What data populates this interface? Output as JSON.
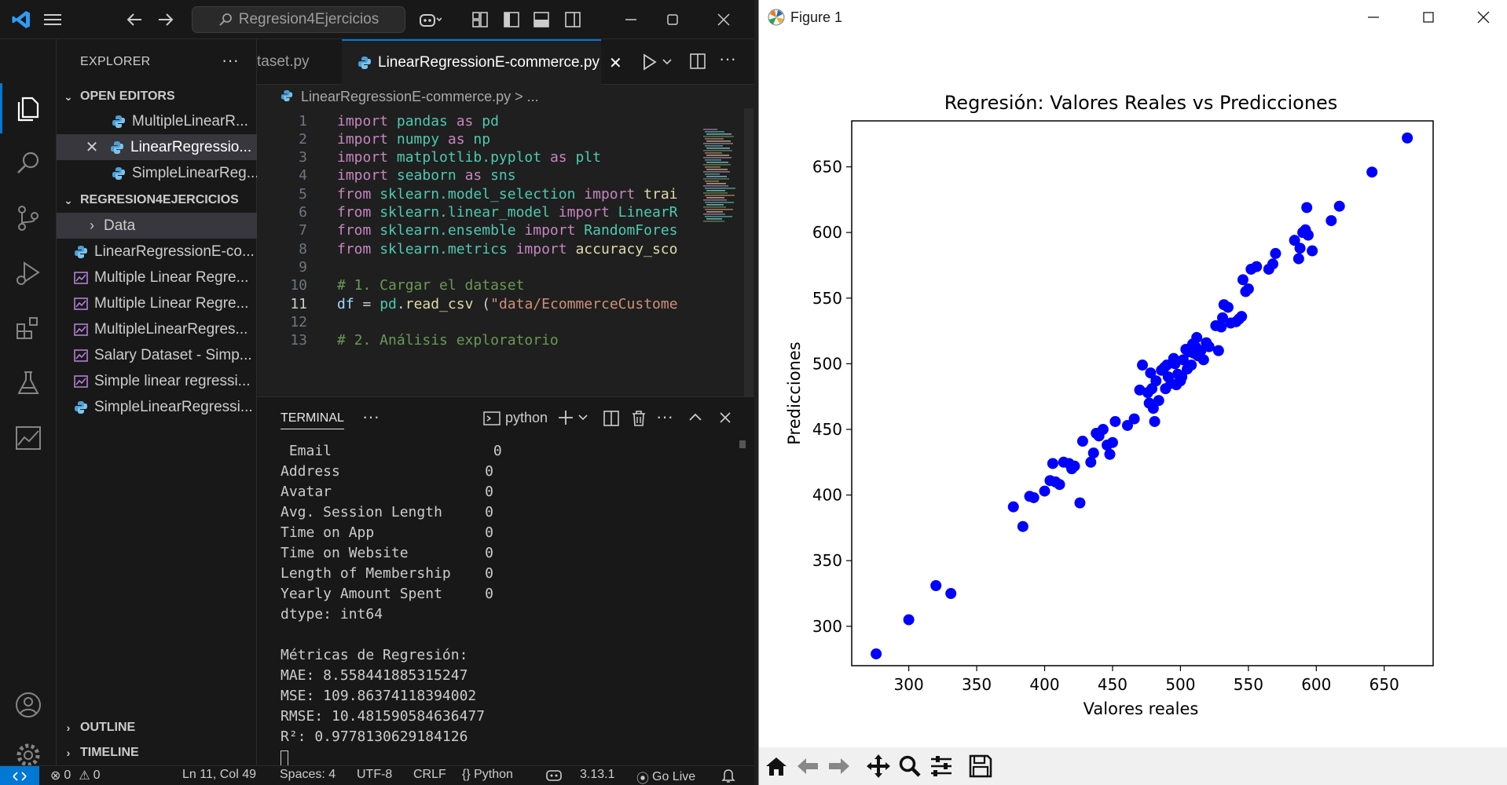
{
  "vscode": {
    "search_box": "Regresion4Ejercicios",
    "explorer_title": "EXPLORER",
    "open_editors_label": "OPEN EDITORS",
    "open_editors": [
      "MultipleLinearR...",
      "LinearRegressio...",
      "SimpleLinearReg..."
    ],
    "project_label": "REGRESION4EJERCICIOS",
    "files": [
      {
        "name": "Data",
        "kind": "folder"
      },
      {
        "name": "LinearRegressionE-co...",
        "kind": "python"
      },
      {
        "name": "Multiple Linear Regre...",
        "kind": "dataset"
      },
      {
        "name": "Multiple Linear Regre...",
        "kind": "dataset"
      },
      {
        "name": "MultipleLinearRegres...",
        "kind": "dataset"
      },
      {
        "name": "Salary Dataset - Simp...",
        "kind": "dataset"
      },
      {
        "name": "Simple linear regressi...",
        "kind": "dataset"
      },
      {
        "name": "SimpleLinearRegressi...",
        "kind": "python"
      }
    ],
    "outline_label": "OUTLINE",
    "timeline_label": "TIMELINE",
    "tabs": [
      {
        "label": "taset.py",
        "active": false
      },
      {
        "label": "LinearRegressionE-commerce.py",
        "active": true
      }
    ],
    "breadcrumb": "LinearRegressionE-commerce.py > ...",
    "current_line": 11,
    "code_lines": [
      {
        "n": "1",
        "parts": [
          [
            "kw",
            "import "
          ],
          [
            "mod",
            "pandas "
          ],
          [
            "kw",
            "as "
          ],
          [
            "mod",
            "pd"
          ]
        ]
      },
      {
        "n": "2",
        "parts": [
          [
            "kw",
            "import "
          ],
          [
            "mod",
            "numpy "
          ],
          [
            "kw",
            "as "
          ],
          [
            "mod",
            "np"
          ]
        ]
      },
      {
        "n": "3",
        "parts": [
          [
            "kw",
            "import "
          ],
          [
            "mod",
            "matplotlib.pyplot "
          ],
          [
            "kw",
            "as "
          ],
          [
            "mod",
            "plt"
          ]
        ]
      },
      {
        "n": "4",
        "parts": [
          [
            "kw",
            "import "
          ],
          [
            "mod",
            "seaborn "
          ],
          [
            "kw",
            "as "
          ],
          [
            "mod",
            "sns"
          ]
        ]
      },
      {
        "n": "5",
        "parts": [
          [
            "kw",
            "from "
          ],
          [
            "mod",
            "sklearn.model_selection "
          ],
          [
            "kw",
            "import "
          ],
          [
            "fn",
            "trai"
          ]
        ]
      },
      {
        "n": "6",
        "parts": [
          [
            "kw",
            "from "
          ],
          [
            "mod",
            "sklearn.linear_model "
          ],
          [
            "kw",
            "import "
          ],
          [
            "mod",
            "LinearR"
          ]
        ]
      },
      {
        "n": "7",
        "parts": [
          [
            "kw",
            "from "
          ],
          [
            "mod",
            "sklearn.ensemble "
          ],
          [
            "kw",
            "import "
          ],
          [
            "mod",
            "RandomFores"
          ]
        ]
      },
      {
        "n": "8",
        "parts": [
          [
            "kw",
            "from "
          ],
          [
            "mod",
            "sklearn.metrics "
          ],
          [
            "kw",
            "import "
          ],
          [
            "fn",
            "accuracy_sco"
          ]
        ]
      },
      {
        "n": "9",
        "parts": []
      },
      {
        "n": "10",
        "parts": [
          [
            "cmt",
            "# 1. Cargar el dataset"
          ]
        ]
      },
      {
        "n": "11",
        "parts": [
          [
            "id",
            "df "
          ],
          [
            "pl",
            "= "
          ],
          [
            "mod",
            "pd"
          ],
          [
            "pl",
            "."
          ],
          [
            "fn",
            "read_csv "
          ],
          [
            "pl",
            "("
          ],
          [
            "str",
            "\"data/EcommerceCustome"
          ]
        ]
      },
      {
        "n": "12",
        "parts": []
      },
      {
        "n": "13",
        "parts": [
          [
            "cmt",
            "# 2. Análisis exploratorio"
          ]
        ]
      }
    ],
    "terminal_tab": "TERMINAL",
    "terminal_shell": "python",
    "terminal_lines": [
      " Email                   0",
      "Address                 0",
      "Avatar                  0",
      "Avg. Session Length     0",
      "Time on App             0",
      "Time on Website         0",
      "Length of Membership    0",
      "Yearly Amount Spent     0",
      "dtype: int64",
      "",
      "Métricas de Regresión:",
      "MAE: 8.558441885315247",
      "MSE: 109.86374118394002",
      "RMSE: 10.481590584636477",
      "R²: 0.9778130629184126"
    ],
    "status": {
      "errors": "0",
      "warnings": "0",
      "position": "Ln 11, Col 49",
      "spaces": "Spaces: 4",
      "encoding": "UTF-8",
      "eol": "CRLF",
      "language": "{} Python",
      "python_version": "3.13.1",
      "go_live": "Go Live"
    }
  },
  "figure": {
    "window_title": "Figure 1"
  },
  "chart_data": {
    "type": "scatter",
    "title": "Regresión: Valores Reales vs Predicciones",
    "xlabel": "Valores reales",
    "ylabel": "Predicciones",
    "xlim": [
      258,
      686
    ],
    "ylim": [
      270,
      685
    ],
    "xticks": [
      300,
      350,
      400,
      450,
      500,
      550,
      600,
      650
    ],
    "yticks": [
      300,
      350,
      400,
      450,
      500,
      550,
      600,
      650
    ],
    "marker_color": "#0000ff",
    "points": [
      [
        276,
        279
      ],
      [
        300,
        305
      ],
      [
        320,
        331
      ],
      [
        331,
        325
      ],
      [
        377,
        391
      ],
      [
        384,
        376
      ],
      [
        389,
        399
      ],
      [
        392,
        398
      ],
      [
        400,
        403
      ],
      [
        404,
        411
      ],
      [
        406,
        424
      ],
      [
        408,
        410
      ],
      [
        411,
        408
      ],
      [
        414,
        425
      ],
      [
        418,
        424
      ],
      [
        420,
        420
      ],
      [
        422,
        422
      ],
      [
        426,
        394
      ],
      [
        428,
        441
      ],
      [
        434,
        425
      ],
      [
        436,
        432
      ],
      [
        438,
        447
      ],
      [
        440,
        445
      ],
      [
        443,
        450
      ],
      [
        446,
        438
      ],
      [
        448,
        431
      ],
      [
        450,
        440
      ],
      [
        452,
        456
      ],
      [
        461,
        453
      ],
      [
        466,
        458
      ],
      [
        470,
        480
      ],
      [
        472,
        499
      ],
      [
        476,
        478
      ],
      [
        477,
        470
      ],
      [
        478,
        493
      ],
      [
        479,
        481
      ],
      [
        480,
        466
      ],
      [
        481,
        456
      ],
      [
        482,
        487
      ],
      [
        484,
        472
      ],
      [
        486,
        495
      ],
      [
        488,
        497
      ],
      [
        489,
        481
      ],
      [
        490,
        499
      ],
      [
        491,
        490
      ],
      [
        493,
        485
      ],
      [
        495,
        504
      ],
      [
        496,
        500
      ],
      [
        497,
        484
      ],
      [
        498,
        492
      ],
      [
        500,
        487
      ],
      [
        501,
        490
      ],
      [
        502,
        503
      ],
      [
        504,
        511
      ],
      [
        505,
        496
      ],
      [
        506,
        509
      ],
      [
        508,
        499
      ],
      [
        509,
        515
      ],
      [
        510,
        508
      ],
      [
        511,
        513
      ],
      [
        512,
        520
      ],
      [
        513,
        506
      ],
      [
        515,
        510
      ],
      [
        517,
        503
      ],
      [
        519,
        516
      ],
      [
        521,
        513
      ],
      [
        526,
        529
      ],
      [
        528,
        510
      ],
      [
        530,
        528
      ],
      [
        531,
        535
      ],
      [
        532,
        545
      ],
      [
        535,
        543
      ],
      [
        537,
        531
      ],
      [
        541,
        532
      ],
      [
        543,
        534
      ],
      [
        545,
        536
      ],
      [
        546,
        564
      ],
      [
        548,
        555
      ],
      [
        550,
        557
      ],
      [
        552,
        572
      ],
      [
        556,
        574
      ],
      [
        565,
        572
      ],
      [
        568,
        576
      ],
      [
        570,
        584
      ],
      [
        584,
        594
      ],
      [
        587,
        580
      ],
      [
        588,
        588
      ],
      [
        590,
        600
      ],
      [
        592,
        602
      ],
      [
        593,
        619
      ],
      [
        594,
        598
      ],
      [
        597,
        586
      ],
      [
        611,
        609
      ],
      [
        617,
        620
      ],
      [
        641,
        646
      ],
      [
        667,
        672
      ]
    ]
  }
}
